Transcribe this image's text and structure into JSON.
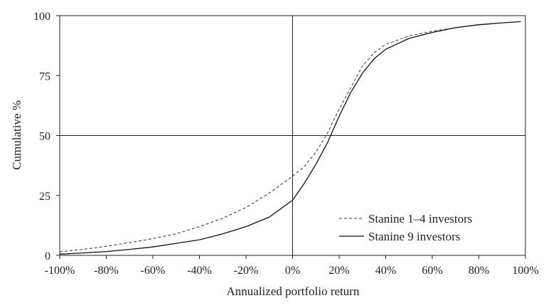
{
  "chart_data": {
    "type": "line",
    "xlabel": "Annualized portfolio return",
    "ylabel": "Cumulative  %",
    "xlim": [
      -100,
      100
    ],
    "ylim": [
      0,
      100
    ],
    "x_ticks": [
      -100,
      -80,
      -60,
      -40,
      -20,
      0,
      20,
      40,
      60,
      80,
      100
    ],
    "x_tick_labels": [
      "-100%",
      "-80%",
      "-60%",
      "-40%",
      "-20%",
      "0%",
      "20%",
      "40%",
      "60%",
      "80%",
      "100%"
    ],
    "y_ticks": [
      0,
      25,
      50,
      75,
      100
    ],
    "y_tick_labels": [
      "0",
      "25",
      "50",
      "75",
      "100"
    ],
    "reference_lines": {
      "x": 0,
      "y": 50
    },
    "grid": false,
    "legend_position": "lower-right",
    "series": [
      {
        "name": "Stanine 1–4 investors",
        "style": "dashed",
        "color": "#333333",
        "x": [
          -100,
          -90,
          -80,
          -70,
          -60,
          -50,
          -40,
          -30,
          -20,
          -10,
          0,
          5,
          10,
          15,
          20,
          25,
          30,
          35,
          40,
          50,
          60,
          70,
          80,
          90,
          98
        ],
        "y": [
          1.5,
          2.5,
          3.8,
          5.3,
          7,
          9,
          12,
          15.5,
          20,
          26,
          33,
          37,
          43,
          51,
          61,
          70,
          79,
          84.5,
          88,
          91.5,
          93.5,
          95,
          96.3,
          97,
          97.5
        ]
      },
      {
        "name": "Stanine 9 investors",
        "style": "solid",
        "color": "#111111",
        "x": [
          -100,
          -90,
          -80,
          -70,
          -60,
          -50,
          -40,
          -30,
          -20,
          -10,
          0,
          5,
          10,
          15,
          20,
          25,
          30,
          35,
          40,
          50,
          60,
          70,
          80,
          90,
          98
        ],
        "y": [
          0.5,
          1,
          1.6,
          2.5,
          3.5,
          5,
          6.5,
          9,
          12,
          16,
          23,
          30,
          38,
          47,
          58,
          68,
          76,
          82,
          86,
          90.5,
          93,
          95,
          96.2,
          97,
          97.5
        ]
      }
    ]
  }
}
